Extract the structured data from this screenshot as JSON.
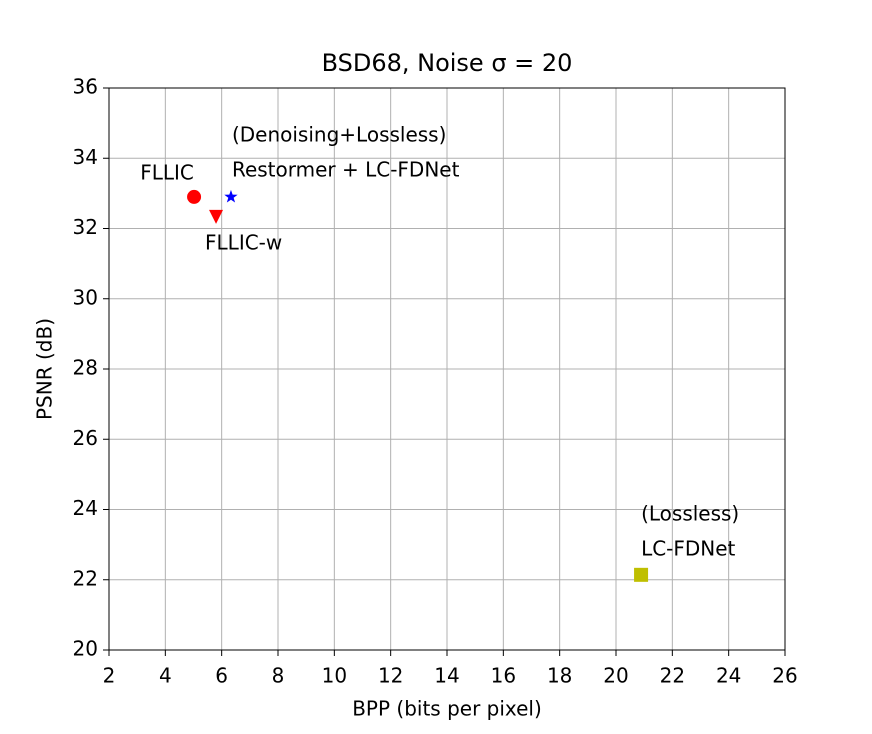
{
  "chart_data": {
    "type": "scatter",
    "title": "BSD68, Noise σ = 20",
    "x_label": "BPP (bits per pixel)",
    "y_label": "PSNR (dB)",
    "xlim": [
      2,
      26
    ],
    "xticks": [
      2,
      4,
      6,
      8,
      10,
      12,
      14,
      16,
      18,
      20,
      22,
      24,
      26
    ],
    "ylim": [
      20,
      36
    ],
    "yticks": [
      20,
      22,
      24,
      26,
      28,
      30,
      32,
      34,
      36
    ],
    "grid": true,
    "series": [
      {
        "label_lines": [
          "FLLIC"
        ],
        "color": "#ff0000",
        "marker": "circle",
        "x": [
          5.02
        ],
        "y": [
          32.9
        ]
      },
      {
        "label_lines": [
          "FLLIC-w"
        ],
        "color": "#ff0000",
        "marker": "triangle-down",
        "x": [
          5.8
        ],
        "y": [
          32.33
        ]
      },
      {
        "label_lines": [
          "(Denoising+Lossless)",
          "Restormer + LC-FDNet"
        ],
        "color": "#0000ff",
        "marker": "star",
        "x": [
          6.33
        ],
        "y": [
          32.9
        ]
      },
      {
        "label_lines": [
          "(Lossless)",
          "LC-FDNet"
        ],
        "color": "#bfbf00",
        "marker": "square",
        "x": [
          20.89
        ],
        "y": [
          22.14
        ]
      }
    ]
  }
}
